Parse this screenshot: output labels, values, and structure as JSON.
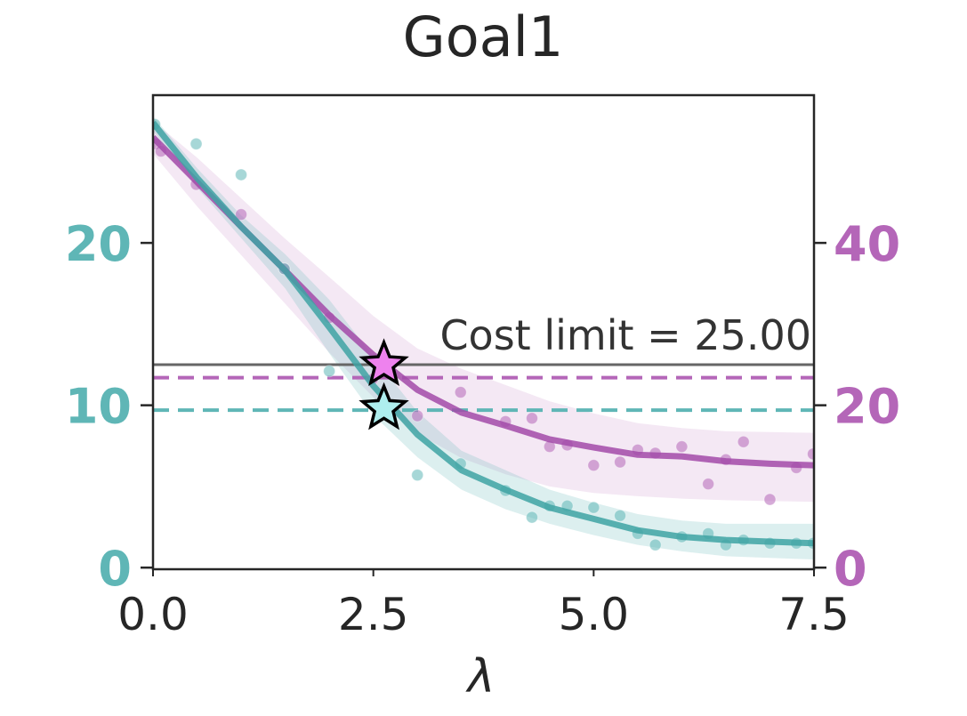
{
  "chart_data": {
    "type": "line",
    "title": "Goal1",
    "xlabel": "λ",
    "ylabel_left": "",
    "ylabel_right": "",
    "xlim": [
      0,
      7.5
    ],
    "ylim_left": [
      -0.1,
      29.1
    ],
    "ylim_right": [
      -0.2,
      58.2
    ],
    "x_ticks": [
      "0.0",
      "2.5",
      "5.0",
      "7.5"
    ],
    "x_tick_values": [
      0,
      2.5,
      5.0,
      7.5
    ],
    "y_left_ticks": [
      "0",
      "10",
      "20"
    ],
    "y_left_tick_values": [
      0,
      10,
      20
    ],
    "y_right_ticks": [
      "0",
      "20",
      "40"
    ],
    "y_right_tick_values": [
      0,
      20,
      40
    ],
    "grid": false,
    "colors": {
      "left": "#5fb6b6",
      "left_line": "#3ea3a3",
      "right": "#b466b8",
      "right_line": "#a24aa8",
      "limit": "#666666",
      "star_right": "#ee82ee",
      "star_left": "#aeeeee"
    },
    "series": [
      {
        "axis": "left",
        "x": [
          0,
          0.5,
          1.0,
          1.5,
          2.0,
          2.5,
          3.0,
          3.5,
          4.0,
          4.5,
          5.0,
          5.5,
          6.0,
          6.5,
          7.0,
          7.5
        ],
        "y": [
          27.4,
          24.0,
          21.0,
          18.3,
          14.8,
          11.2,
          8.2,
          6.0,
          4.8,
          3.7,
          3.0,
          2.3,
          1.9,
          1.7,
          1.6,
          1.5
        ],
        "band_low": [
          26.9,
          23.4,
          20.3,
          17.2,
          13.2,
          9.4,
          6.8,
          4.8,
          3.6,
          2.7,
          2.0,
          1.4,
          1.0,
          0.7,
          0.6,
          0.5
        ],
        "band_high": [
          27.8,
          24.6,
          21.7,
          19.3,
          16.5,
          13.0,
          9.6,
          7.2,
          6.0,
          4.8,
          4.0,
          3.3,
          2.9,
          2.7,
          2.7,
          2.7
        ],
        "points_x": [
          0.02,
          0.49,
          1.0,
          1.49,
          2.0,
          3.0,
          3.49,
          4.0,
          4.3,
          4.5,
          4.7,
          5.0,
          5.3,
          5.5,
          5.7,
          6.0,
          6.3,
          6.5,
          6.7,
          7.0,
          7.3,
          7.49
        ],
        "points_y": [
          27.3,
          26.1,
          24.2,
          18.4,
          12.1,
          5.7,
          6.4,
          4.75,
          3.1,
          3.8,
          3.8,
          3.7,
          3.2,
          2.1,
          1.4,
          1.9,
          2.1,
          1.4,
          1.7,
          1.5,
          1.5,
          1.5
        ]
      },
      {
        "axis": "right",
        "x": [
          0,
          0.5,
          1.0,
          1.5,
          2.0,
          2.5,
          3.0,
          3.5,
          4.0,
          4.5,
          5.0,
          5.5,
          6.0,
          6.5,
          7.0,
          7.5
        ],
        "y": [
          53.0,
          47.5,
          42.0,
          36.6,
          31.1,
          26.2,
          21.9,
          19.1,
          17.5,
          15.8,
          14.8,
          13.9,
          13.7,
          13.1,
          12.8,
          12.6
        ],
        "band_low": [
          51.0,
          44.5,
          38.5,
          32.5,
          26.5,
          21.0,
          16.5,
          13.5,
          11.5,
          10.0,
          9.2,
          8.8,
          8.5,
          8.3,
          8.2,
          8.1
        ],
        "band_high": [
          55.0,
          50.5,
          45.5,
          40.5,
          35.8,
          31.0,
          27.0,
          24.5,
          22.5,
          20.5,
          19.0,
          17.8,
          17.2,
          16.8,
          16.7,
          16.6
        ],
        "points_x": [
          0.03,
          0.09,
          0.49,
          1.0,
          1.49,
          2.0,
          2.49,
          3.0,
          3.49,
          4.0,
          4.3,
          4.5,
          4.7,
          5.0,
          5.3,
          5.5,
          5.7,
          6.0,
          6.3,
          6.5,
          6.7,
          7.0,
          7.3,
          7.49
        ],
        "points_y": [
          52.2,
          51.3,
          47.2,
          43.5,
          36.8,
          30.8,
          23.2,
          18.7,
          21.6,
          18.0,
          18.4,
          14.9,
          15.1,
          12.6,
          13.0,
          14.5,
          14.1,
          14.9,
          10.3,
          13.3,
          15.5,
          8.4,
          12.3,
          14.0
        ]
      }
    ],
    "hlines": [
      {
        "axis": "right",
        "value": 25.0,
        "style": "solid",
        "label": "Cost limit = 25.00"
      },
      {
        "axis": "right",
        "value": 23.4,
        "style": "dashed"
      },
      {
        "axis": "left",
        "value": 9.7,
        "style": "dashed"
      }
    ],
    "stars": [
      {
        "axis": "right",
        "x": 2.62,
        "y": 25.0
      },
      {
        "axis": "left",
        "x": 2.62,
        "y": 9.8
      }
    ]
  }
}
